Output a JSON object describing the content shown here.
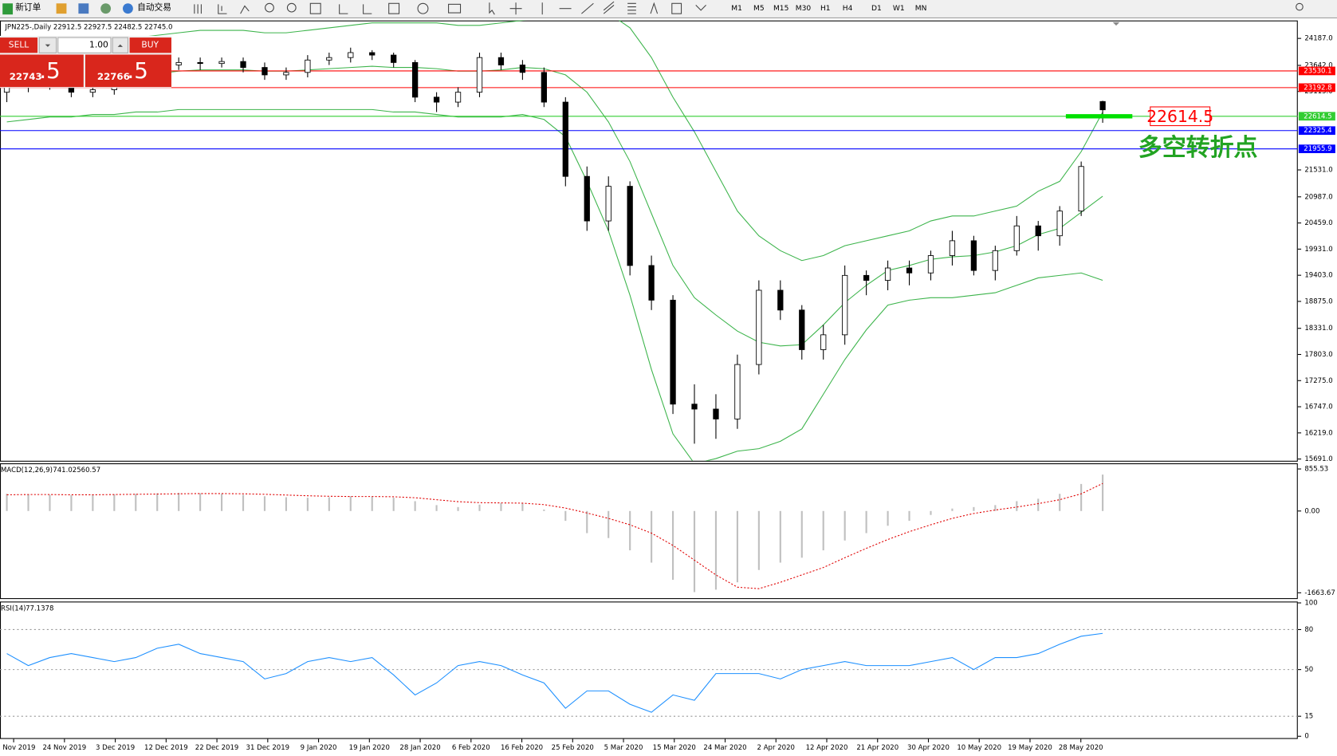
{
  "toolbar": {
    "new_order": "新订单",
    "auto_trading": "自动交易",
    "timeframes": [
      "M1",
      "M5",
      "M15",
      "M30",
      "H1",
      "H4",
      "D1",
      "W1",
      "MN"
    ]
  },
  "trade_panel": {
    "sell": "SELL",
    "lots": "1.00",
    "buy": "BUY",
    "sell_price": "22743",
    "sell_fraction": ".5",
    "buy_price": "22766",
    "buy_fraction": ".5"
  },
  "chart_data": {
    "type": "candlestick",
    "symbol_info": "JPN225-,Daily  22912.5 22927.5 22482.5 22745.0",
    "open": [
      23100,
      23200,
      23250,
      23350,
      23100,
      23150,
      23300,
      23500,
      23650,
      23700,
      23680,
      23720,
      23600,
      23450,
      23500,
      23750,
      23800,
      23900,
      23850,
      23700,
      23000,
      22900,
      23100,
      23800,
      23650,
      23500,
      22900,
      21400,
      20500,
      21200,
      19600,
      18900,
      16800,
      16700,
      16500,
      17600,
      19100,
      18700,
      17900,
      18200,
      19400,
      19300,
      19550,
      19450,
      19800,
      20100,
      19500,
      19900,
      20400,
      20200,
      20700,
      22912.5
    ],
    "high": [
      23300,
      23350,
      23450,
      23400,
      23250,
      23400,
      23600,
      23750,
      23800,
      23800,
      23800,
      23800,
      23700,
      23600,
      23850,
      23900,
      24000,
      23950,
      23900,
      23750,
      23100,
      23200,
      23900,
      23900,
      23750,
      23600,
      23000,
      21600,
      21400,
      21300,
      19800,
      19000,
      17200,
      17000,
      17800,
      19300,
      19300,
      18800,
      18400,
      19600,
      19500,
      19700,
      19700,
      19900,
      20300,
      20200,
      20000,
      20600,
      20500,
      20800,
      21700,
      22927.5
    ],
    "low": [
      22900,
      23100,
      23150,
      23000,
      23000,
      23050,
      23200,
      23400,
      23550,
      23550,
      23600,
      23500,
      23350,
      23350,
      23400,
      23650,
      23700,
      23750,
      23600,
      22900,
      22700,
      22800,
      23000,
      23550,
      23350,
      22800,
      21200,
      20300,
      20300,
      19400,
      18700,
      16600,
      16000,
      16100,
      16300,
      17400,
      18500,
      17700,
      17700,
      18000,
      19000,
      19100,
      19200,
      19300,
      19600,
      19400,
      19300,
      19800,
      19900,
      20000,
      20600,
      22482.5
    ],
    "close": [
      23200,
      23250,
      23350,
      23100,
      23150,
      23300,
      23500,
      23650,
      23700,
      23680,
      23720,
      23600,
      23450,
      23500,
      23750,
      23800,
      23900,
      23850,
      23700,
      23000,
      22900,
      23100,
      23800,
      23650,
      23500,
      22900,
      21400,
      20500,
      21200,
      19600,
      18900,
      16800,
      16700,
      16500,
      17600,
      19100,
      18700,
      17900,
      18200,
      19400,
      19300,
      19550,
      19450,
      19800,
      20100,
      19500,
      19900,
      20400,
      20200,
      20700,
      21600,
      22745.0
    ],
    "bands": {
      "color": "#3cb44b",
      "upper": [
        23900,
        23950,
        24000,
        24050,
        24100,
        24150,
        24200,
        24250,
        24300,
        24350,
        24350,
        24350,
        24300,
        24300,
        24350,
        24400,
        24450,
        24500,
        24500,
        24500,
        24500,
        24450,
        24450,
        24500,
        24550,
        24600,
        24700,
        24900,
        24700,
        24400,
        23800,
        23000,
        22300,
        21500,
        20700,
        20200,
        19900,
        19700,
        19800,
        20000,
        20100,
        20200,
        20300,
        20500,
        20600,
        20600,
        20700,
        20800,
        21100,
        21300,
        21900,
        22700
      ],
      "middle": [
        23200,
        23250,
        23300,
        23325,
        23375,
        23400,
        23450,
        23475,
        23525,
        23550,
        23550,
        23550,
        23525,
        23525,
        23550,
        23575,
        23600,
        23625,
        23600,
        23600,
        23575,
        23525,
        23525,
        23550,
        23600,
        23575,
        23450,
        23100,
        22500,
        21700,
        20650,
        19600,
        18950,
        18600,
        18275,
        18050,
        17975,
        18000,
        18400,
        18850,
        19200,
        19500,
        19600,
        19725,
        19775,
        19800,
        19875,
        20000,
        20225,
        20350,
        20675,
        21000
      ],
      "lower": [
        22500,
        22550,
        22600,
        22600,
        22650,
        22650,
        22700,
        22700,
        22750,
        22750,
        22750,
        22750,
        22750,
        22750,
        22750,
        22750,
        22750,
        22750,
        22700,
        22700,
        22650,
        22600,
        22600,
        22600,
        22650,
        22550,
        22200,
        21300,
        20300,
        19000,
        17500,
        16200,
        15600,
        15700,
        15850,
        15900,
        16050,
        16300,
        17000,
        17700,
        18300,
        18800,
        18900,
        18950,
        18950,
        19000,
        19050,
        19200,
        19350,
        19400,
        19450,
        19300
      ]
    },
    "levels": [
      {
        "value": 23530.1,
        "color": "#ff0000"
      },
      {
        "value": 23192.8,
        "color": "#ff0000"
      },
      {
        "value": 22614.5,
        "color": "#32cd32"
      },
      {
        "value": 22325.4,
        "color": "#0000ff"
      },
      {
        "value": 21955.9,
        "color": "#0000ff"
      }
    ],
    "annotation": {
      "text": "多空转折点",
      "value": 22614.5,
      "color": "#22a322"
    },
    "ylim": [
      15656,
      24549
    ],
    "yticks": [
      {
        "value": 24187.0,
        "label": "24187.0"
      },
      {
        "value": 23642.0,
        "label": "23642.0"
      },
      {
        "value": 23115.0,
        "label": "23115.0"
      },
      {
        "value": 21531.0,
        "label": "21531.0"
      },
      {
        "value": 20987.0,
        "label": "20987.0"
      },
      {
        "value": 20459.0,
        "label": "20459.0"
      },
      {
        "value": 19931.0,
        "label": "19931.0"
      },
      {
        "value": 19403.0,
        "label": "19403.0"
      },
      {
        "value": 18875.0,
        "label": "18875.0"
      },
      {
        "value": 18331.0,
        "label": "18331.0"
      },
      {
        "value": 17803.0,
        "label": "17803.0"
      },
      {
        "value": 17275.0,
        "label": "17275.0"
      },
      {
        "value": 16747.0,
        "label": "16747.0"
      },
      {
        "value": 16219.0,
        "label": "16219.0"
      },
      {
        "value": 15691.0,
        "label": "15691.0"
      }
    ],
    "x_labels": [
      "15 Nov 2019",
      "24 Nov 2019",
      "3 Dec 2019",
      "12 Dec 2019",
      "22 Dec 2019",
      "31 Dec 2019",
      "9 Jan 2020",
      "19 Jan 2020",
      "28 Jan 2020",
      "6 Feb 2020",
      "16 Feb 2020",
      "25 Feb 2020",
      "5 Mar 2020",
      "15 Mar 2020",
      "24 Mar 2020",
      "2 Apr 2020",
      "12 Apr 2020",
      "21 Apr 2020",
      "30 Apr 2020",
      "10 May 2020",
      "19 May 2020",
      "28 May 2020"
    ],
    "macd": {
      "title": "MACD(12,26,9)",
      "histogram": [
        350,
        340,
        330,
        320,
        330,
        340,
        350,
        360,
        370,
        360,
        350,
        330,
        300,
        280,
        270,
        280,
        300,
        290,
        270,
        200,
        120,
        80,
        130,
        160,
        150,
        30,
        -200,
        -450,
        -550,
        -800,
        -1050,
        -1400,
        -1650,
        -1600,
        -1450,
        -1200,
        -1050,
        -950,
        -800,
        -600,
        -450,
        -300,
        -200,
        -80,
        50,
        80,
        120,
        200,
        250,
        350,
        550,
        741.02
      ],
      "signal": [
        330,
        335,
        335,
        330,
        330,
        335,
        340,
        345,
        350,
        355,
        355,
        350,
        340,
        325,
        310,
        300,
        295,
        295,
        290,
        270,
        230,
        190,
        170,
        165,
        160,
        130,
        60,
        -40,
        -150,
        -280,
        -450,
        -700,
        -1000,
        -1300,
        -1550,
        -1580,
        -1450,
        -1300,
        -1150,
        -950,
        -760,
        -580,
        -420,
        -280,
        -150,
        -50,
        20,
        80,
        150,
        230,
        350,
        560.57
      ],
      "ylim": [
        -1790,
        970
      ],
      "yticks": [
        855.53,
        {
          "value": 0,
          "label": "0.00"
        },
        -1663.67
      ]
    },
    "rsi": {
      "title": "RSI(14)",
      "values": [
        62,
        53,
        59,
        62,
        59,
        56,
        59,
        66,
        69,
        62,
        59,
        56,
        43,
        47,
        56,
        59,
        56,
        59,
        46,
        31,
        40,
        53,
        56,
        53,
        46,
        40,
        21,
        34,
        34,
        24,
        18,
        31,
        27,
        47,
        47,
        47,
        43,
        50,
        53,
        56,
        53,
        53,
        53,
        56,
        59,
        50,
        59,
        59,
        62,
        69,
        75,
        77.1378
      ],
      "ylim": [
        -2,
        101
      ],
      "yticks": [
        100,
        80,
        50,
        15,
        0
      ],
      "levels": [
        80,
        50,
        15
      ]
    }
  }
}
